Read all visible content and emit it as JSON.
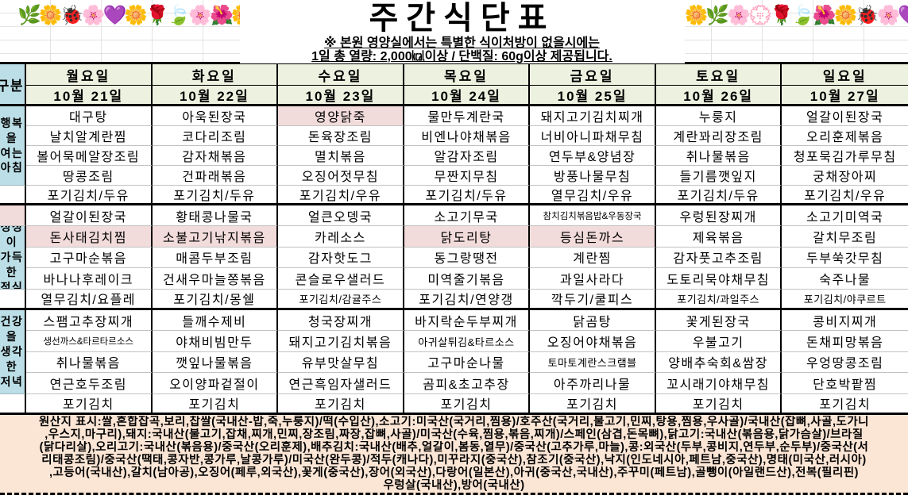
{
  "title": "주간식단표",
  "notes": {
    "line1": "※ 본원 영양실에서는 특별한 식이처방이 없을시에는",
    "line2": "1일 총 열량: 2,000㎉이상 / 단백질: 60g이상 제공됩니다."
  },
  "decor": {
    "garland_left": "🌿🌼🐞🌸💜🌼🌹🍃🌸🌺🌼💐🌸🌼🍃",
    "garland_right": "🌼🌿🌸💮🌹🍃🌺🌼🐞🌸💜🌼🌿🌺🌼🍂"
  },
  "colors": {
    "header_bg": "#edf1df",
    "label_bg": "#bcdfe7",
    "highlight_bg": "#f2dcdb",
    "footer_bg": "#fbe5d5"
  },
  "table": {
    "corner_label": "구분",
    "days": [
      {
        "name": "월요일",
        "date": "10월 21일"
      },
      {
        "name": "화요일",
        "date": "10월 22일"
      },
      {
        "name": "수요일",
        "date": "10월 23일"
      },
      {
        "name": "목요일",
        "date": "10월 24일"
      },
      {
        "name": "금요일",
        "date": "10월 25일"
      },
      {
        "name": "토요일",
        "date": "10월 26일"
      },
      {
        "name": "일요일",
        "date": "10월 27일"
      }
    ],
    "groups": [
      {
        "label_lines": [
          "행복을",
          "여는",
          "아침"
        ],
        "label_top_pink": false,
        "highlights": [
          [
            2,
            0
          ]
        ],
        "menus": [
          [
            "대구탕",
            "날치알계란찜",
            "볼어묵메알장조림",
            "땅콩조림",
            "포기김치/두유"
          ],
          [
            "아욱된장국",
            "코다리조림",
            "감자채볶음",
            "건파래볶음",
            "포기김치/두유"
          ],
          [
            "영양닭죽",
            "돈육장조림",
            "멸치볶음",
            "오징어젓무침",
            "포기김치/우유"
          ],
          [
            "물만두계란국",
            "비엔나야채볶음",
            "알감자조림",
            "무짠지무침",
            "포기김치/두유"
          ],
          [
            "돼지고기김치찌개",
            "너비아니파채무침",
            "연두부&양념장",
            "방풍나물무침",
            "열무김치/우유"
          ],
          [
            "누룽지",
            "계란꽈리장조림",
            "취나물볶음",
            "들기름깻잎지",
            "포기김치/두유"
          ],
          [
            "얼갈이된장국",
            "오리훈제볶음",
            "청포묵김가루무침",
            "궁채장아찌",
            "포기김치/우유"
          ]
        ]
      },
      {
        "label_lines": [
          "정성이",
          "가득한",
          "점심"
        ],
        "label_top_pink": true,
        "highlights": [
          [
            0,
            1
          ],
          [
            1,
            1
          ],
          [
            3,
            1
          ],
          [
            4,
            1
          ]
        ],
        "menus": [
          [
            "얼갈이된장국",
            "돈사태김치찜",
            "고구마순볶음",
            "바나나후레이크",
            "열무김치/요플레"
          ],
          [
            "황태콩나물국",
            "소불고기낚지볶음",
            "매콤두부조림",
            "건새우마늘쫑볶음",
            "포기김치/몽쉘"
          ],
          [
            "얼큰오뎅국",
            "카레소스",
            "감자핫도그",
            "콘슬로우샐러드",
            "포기김치/감귤주스"
          ],
          [
            "소고기무국",
            "닭도리탕",
            "동그랑땡전",
            "미역줄기볶음",
            "포기김치/연양갱"
          ],
          [
            "참치김치볶음밥&우동장국",
            "등심돈까스",
            "계란찜",
            "과일사라다",
            "깍두기/쿨피스"
          ],
          [
            "우렁된장찌개",
            "제육볶음",
            "감자풋고추조림",
            "도토리묵야채무침",
            "포기김치/과일주스"
          ],
          [
            "소고기미역국",
            "갈치무조림",
            "두부쑥갓무침",
            "숙주나물",
            "포기김치/야쿠르트"
          ]
        ]
      },
      {
        "label_lines": [
          "건강을",
          "생각한",
          "저녁"
        ],
        "label_top_pink": false,
        "highlights": [],
        "menus": [
          [
            "스팸고추장찌개",
            "생선까스&타르타르소스",
            "취나물볶음",
            "연근호두조림",
            "포기김치"
          ],
          [
            "들깨수제비",
            "야채비빔만두",
            "깻잎나물볶음",
            "오이양파겉절이",
            "포기김치"
          ],
          [
            "청국장찌개",
            "돼지고기김치볶음",
            "유부맛살무침",
            "연근흑임자샐러드",
            "포기김치"
          ],
          [
            "바지락순두부찌개",
            "아귀살튀김&타르소스",
            "고구마순나물",
            "곰피&초고추장",
            "포기김치"
          ],
          [
            "닭곰탕",
            "오징어야채볶음",
            "토마토계란스크램블",
            "아주까리나물",
            "포기김치"
          ],
          [
            "꽃게된장국",
            "우불고기",
            "양배추숙회&쌈장",
            "꼬시래기야채무침",
            "포기김치"
          ],
          [
            "콩비지찌개",
            "돈채피망볶음",
            "우엉땅콩조림",
            "단호박팥찜",
            "포기김치"
          ]
        ]
      }
    ]
  },
  "footer": {
    "lines": [
      "원산지 표시:쌀,혼합잡곡,보리,찹쌀(국내산-밥,죽,누룽지)/떡(수입산),소고기:미국산(국거리,찜용)/호주산(국거리,불고기,민찌,탕용,찜용,우사골)/국내산(잡뼈,사골,도가니",
      ",우스지,마구리),돼지:국내산(불고기,잡채,찌개,민찌,장조림,짜장,잡뼈,사골)/미국산(수육,찜용,볶음,찌개)/스페인(삼겹,돈목뼈),닭고기:국내산(볶음용,닭가슴살)/브라질",
      "(닭다리살),오리고기:국내산(볶음용)/중국산(오리훈제),배추김치:국내산(배추,얼갈이,봄동,열무)/중국산(고추가루,마늘),콩:외국산(두부,콩비지,연두부,순두부)/중국산(서",
      "리태콩조림)/중국산(땍태,콩자반,콩가루,날콩가루)/미국산(완두콩)/적두(캐나다),미꾸라지(중국산),참조기(중국산),낙지(인도네시아,페트남,중국산),명태(미국산,러시아)",
      ",고등어(국내산),갈치(남아공),오징어(페루,외국산),꽃게(중국산),장어(외국산),다랑어(일본산),아귀(중국산,국내산),주꾸미(페트남),골뺑이(아일랜드산),전복(필리핀)",
      "우렁살(국내산),방어(국내산)"
    ]
  }
}
